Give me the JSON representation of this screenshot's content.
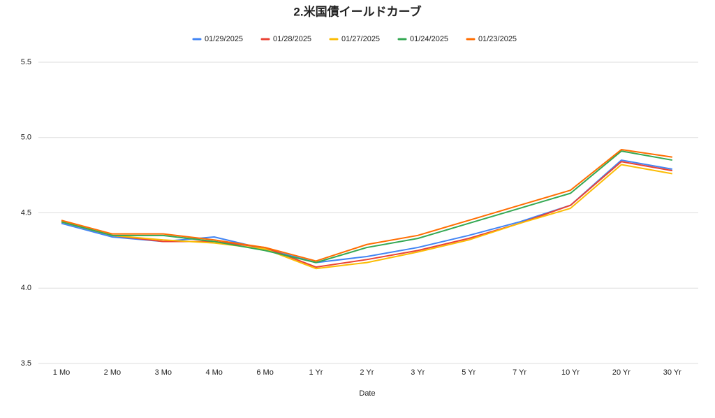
{
  "chart_data": {
    "type": "line",
    "title": "2.米国債イールドカーブ",
    "x_label": "Date",
    "categories": [
      "1 Mo",
      "2 Mo",
      "3 Mo",
      "4 Mo",
      "6 Mo",
      "1 Yr",
      "2 Yr",
      "3 Yr",
      "5 Yr",
      "7 Yr",
      "10 Yr",
      "20 Yr",
      "30 Yr"
    ],
    "series": [
      {
        "name": "01/29/2025",
        "color": "#4285f4",
        "values": [
          4.43,
          4.34,
          4.31,
          4.34,
          4.26,
          4.17,
          4.21,
          4.27,
          4.35,
          4.44,
          4.55,
          4.85,
          4.79
        ]
      },
      {
        "name": "01/28/2025",
        "color": "#ea4335",
        "values": [
          4.44,
          4.35,
          4.31,
          4.31,
          4.27,
          4.14,
          4.19,
          4.25,
          4.33,
          4.43,
          4.55,
          4.84,
          4.78
        ]
      },
      {
        "name": "01/27/2025",
        "color": "#fbbc04",
        "values": [
          4.44,
          4.35,
          4.32,
          4.3,
          4.26,
          4.13,
          4.17,
          4.24,
          4.32,
          4.43,
          4.53,
          4.82,
          4.76
        ]
      },
      {
        "name": "01/24/2025",
        "color": "#34a853",
        "values": [
          4.44,
          4.35,
          4.35,
          4.31,
          4.25,
          4.17,
          4.27,
          4.33,
          4.43,
          4.53,
          4.63,
          4.91,
          4.85
        ]
      },
      {
        "name": "01/23/2025",
        "color": "#ff6d01",
        "values": [
          4.45,
          4.36,
          4.36,
          4.32,
          4.27,
          4.18,
          4.29,
          4.35,
          4.45,
          4.55,
          4.65,
          4.92,
          4.87
        ]
      }
    ],
    "ylim": [
      3.5,
      5.5
    ],
    "yticks": [
      {
        "value": 3.5,
        "label": "3.5"
      },
      {
        "value": 4,
        "label": "4.0"
      },
      {
        "value": 4.5,
        "label": "4.5"
      },
      {
        "value": 5,
        "label": "5.0"
      },
      {
        "value": 5.5,
        "label": "5.5"
      }
    ],
    "grid": true,
    "legend": "top"
  }
}
